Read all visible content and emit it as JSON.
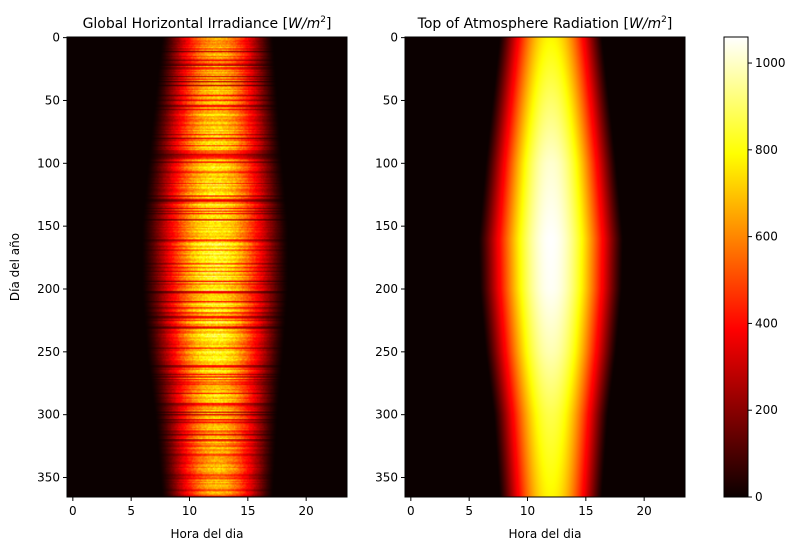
{
  "figure": {
    "colorbar": {
      "ticks": [
        0,
        200,
        400,
        600,
        800,
        1000
      ],
      "vmin": 0,
      "vmax": 1060,
      "colormap": "hot"
    }
  },
  "chart_data": [
    {
      "type": "heatmap",
      "title_prefix": "Global Horizontal Irradiance [",
      "title_unit": "W/m",
      "title_exp": "2",
      "title_suffix": "]",
      "xlabel": "Hora del dia",
      "ylabel": "Día del año",
      "xlim": [
        -0.5,
        23.5
      ],
      "ylim": [
        365.5,
        -0.5
      ],
      "xticks": [
        "0",
        "5",
        "10",
        "15",
        "20"
      ],
      "yticks": [
        "0",
        "50",
        "100",
        "150",
        "200",
        "250",
        "300",
        "350"
      ],
      "units": "W/m^2",
      "description": "noisy measured irradiance, daylight roughly 6-18 h, peak ~900",
      "seasonal_profile": [
        {
          "day": 0,
          "sunrise": 7.6,
          "sunset": 17.2,
          "peak": 720
        },
        {
          "day": 50,
          "sunrise": 7.0,
          "sunset": 17.6,
          "peak": 780
        },
        {
          "day": 100,
          "sunrise": 6.4,
          "sunset": 18.0,
          "peak": 840
        },
        {
          "day": 150,
          "sunrise": 5.9,
          "sunset": 18.5,
          "peak": 880
        },
        {
          "day": 200,
          "sunrise": 5.9,
          "sunset": 18.5,
          "peak": 900
        },
        {
          "day": 250,
          "sunrise": 6.3,
          "sunset": 18.1,
          "peak": 860
        },
        {
          "day": 300,
          "sunrise": 7.0,
          "sunset": 17.6,
          "peak": 780
        },
        {
          "day": 365,
          "sunrise": 7.6,
          "sunset": 17.2,
          "peak": 720
        }
      ]
    },
    {
      "type": "heatmap",
      "title_prefix": "Top of Atmosphere Radiation [",
      "title_unit": "W/m",
      "title_exp": "2",
      "title_suffix": "]",
      "xlabel": "Hora del dia",
      "ylabel": "",
      "xlim": [
        -0.5,
        23.5
      ],
      "ylim": [
        365.5,
        -0.5
      ],
      "xticks": [
        "0",
        "5",
        "10",
        "15",
        "20"
      ],
      "yticks": [
        "0",
        "50",
        "100",
        "150",
        "200",
        "250",
        "300",
        "350"
      ],
      "units": "W/m^2",
      "description": "smooth extraterrestrial radiation, peak ~1060 near day 150-170 at noon",
      "seasonal_profile": [
        {
          "day": 0,
          "sunrise": 7.6,
          "sunset": 16.4,
          "peak": 780
        },
        {
          "day": 50,
          "sunrise": 7.0,
          "sunset": 17.0,
          "peak": 900
        },
        {
          "day": 100,
          "sunrise": 6.4,
          "sunset": 17.6,
          "peak": 1010
        },
        {
          "day": 160,
          "sunrise": 5.8,
          "sunset": 18.2,
          "peak": 1060
        },
        {
          "day": 200,
          "sunrise": 5.9,
          "sunset": 18.1,
          "peak": 1050
        },
        {
          "day": 250,
          "sunrise": 6.4,
          "sunset": 17.6,
          "peak": 980
        },
        {
          "day": 300,
          "sunrise": 7.1,
          "sunset": 16.9,
          "peak": 870
        },
        {
          "day": 365,
          "sunrise": 7.6,
          "sunset": 16.4,
          "peak": 780
        }
      ]
    }
  ]
}
